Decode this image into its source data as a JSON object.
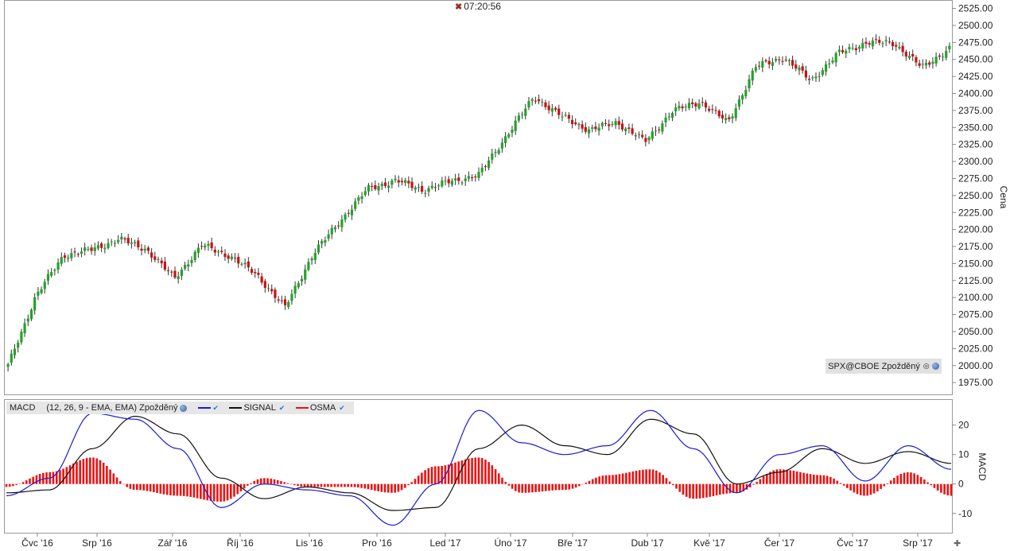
{
  "clock": {
    "time": "07:20:56"
  },
  "price_panel": {
    "symbol_label": "SPX@CBOE Zpožděný",
    "axis_title": "Cena",
    "y_ticks": [
      "2525.00",
      "2500.00",
      "2475.00",
      "2450.00",
      "2425.00",
      "2400.00",
      "2375.00",
      "2350.00",
      "2325.00",
      "2300.00",
      "2275.00",
      "2250.00",
      "2225.00",
      "2200.00",
      "2175.00",
      "2150.00",
      "2125.00",
      "2100.00",
      "2075.00",
      "2050.00",
      "2025.00",
      "2000.00",
      "1975.00"
    ]
  },
  "macd_panel": {
    "name": "MACD",
    "params": "(12, 26, 9 - EMA, EMA) Zpožděný",
    "signal_label": "SIGNAL",
    "osma_label": "OSMA",
    "axis_title": "MACD",
    "y_ticks": [
      "20",
      "10",
      "0",
      "-10"
    ]
  },
  "x_ticks": [
    "Čvc '16",
    "Srp '16",
    "Zář '16",
    "Říj '16",
    "Lis '16",
    "Pro '16",
    "Led '17",
    "Úno '17",
    "Bře '17",
    "Dub '17",
    "Kvě '17",
    "Čer '17",
    "Čvc '17",
    "Srp '17"
  ],
  "colors": {
    "up": "#22a32a",
    "down": "#cc1111",
    "macd": "#1a1ad6",
    "signal": "#111111",
    "osma": "#ee1111"
  },
  "chart_data": [
    {
      "type": "candlestick",
      "title": "SPX@CBOE Zpožděný",
      "ylabel": "Cena",
      "ylim": [
        1960,
        2535
      ],
      "anchor_closes": [
        [
          "Jun 27 '16",
          2000
        ],
        [
          "Jul 1 '16",
          2102
        ],
        [
          "Jul 15 '16",
          2162
        ],
        [
          "Aug 1 '16",
          2170
        ],
        [
          "Aug 15 '16",
          2186
        ],
        [
          "Sep 1 '16",
          2171
        ],
        [
          "Sep 9 '16",
          2128
        ],
        [
          "Sep 22 '16",
          2177
        ],
        [
          "Oct 3 '16",
          2161
        ],
        [
          "Oct 14 '16",
          2133
        ],
        [
          "Nov 4 '16",
          2085
        ],
        [
          "Nov 9 '16",
          2163
        ],
        [
          "Nov 25 '16",
          2213
        ],
        [
          "Dec 9 '16",
          2260
        ],
        [
          "Dec 13 '16",
          2272
        ],
        [
          "Jan 3 '17",
          2258
        ],
        [
          "Jan 20 '17",
          2271
        ],
        [
          "Feb 1 '17",
          2280
        ],
        [
          "Feb 14 '17",
          2338
        ],
        [
          "Mar 1 '17",
          2395
        ],
        [
          "Mar 14 '17",
          2366
        ],
        [
          "Mar 22 '17",
          2346
        ],
        [
          "Apr 3 '17",
          2358
        ],
        [
          "Apr 13 '17",
          2329
        ],
        [
          "Apr 24 '17",
          2374
        ],
        [
          "May 1 '17",
          2388
        ],
        [
          "May 17 '17",
          2357
        ],
        [
          "Jun 2 '17",
          2439
        ],
        [
          "Jun 19 '17",
          2453
        ],
        [
          "Jun 29 '17",
          2419
        ],
        [
          "Jul 14 '17",
          2459
        ],
        [
          "Jul 27 '17",
          2475
        ],
        [
          "Aug 8 '17",
          2474
        ],
        [
          "Aug 10 '17",
          2438
        ],
        [
          "Aug 14 '17",
          2466
        ]
      ]
    },
    {
      "type": "line",
      "title": "MACD",
      "ylabel": "MACD",
      "ylim": [
        -16,
        28
      ],
      "series": [
        {
          "name": "MACD",
          "values": [
            -4,
            2,
            24,
            22,
            12,
            -8,
            0,
            -2,
            -4,
            -14,
            0,
            25,
            14,
            10,
            13,
            25,
            12,
            -3,
            10,
            13,
            1,
            13,
            5
          ]
        },
        {
          "name": "SIGNAL",
          "values": [
            -3,
            -2,
            12,
            23,
            17,
            2,
            -5,
            -1,
            -3,
            -9,
            -8,
            12,
            20,
            13,
            10,
            22,
            17,
            0,
            4,
            12,
            7,
            11,
            7
          ]
        },
        {
          "name": "OSMA",
          "values": [
            -1,
            4,
            9,
            -2,
            -4,
            -6,
            2,
            -1,
            -1,
            -3,
            6,
            9,
            -3,
            -2,
            3,
            5,
            -5,
            -3,
            5,
            3,
            -4,
            4,
            -4
          ]
        }
      ]
    }
  ]
}
